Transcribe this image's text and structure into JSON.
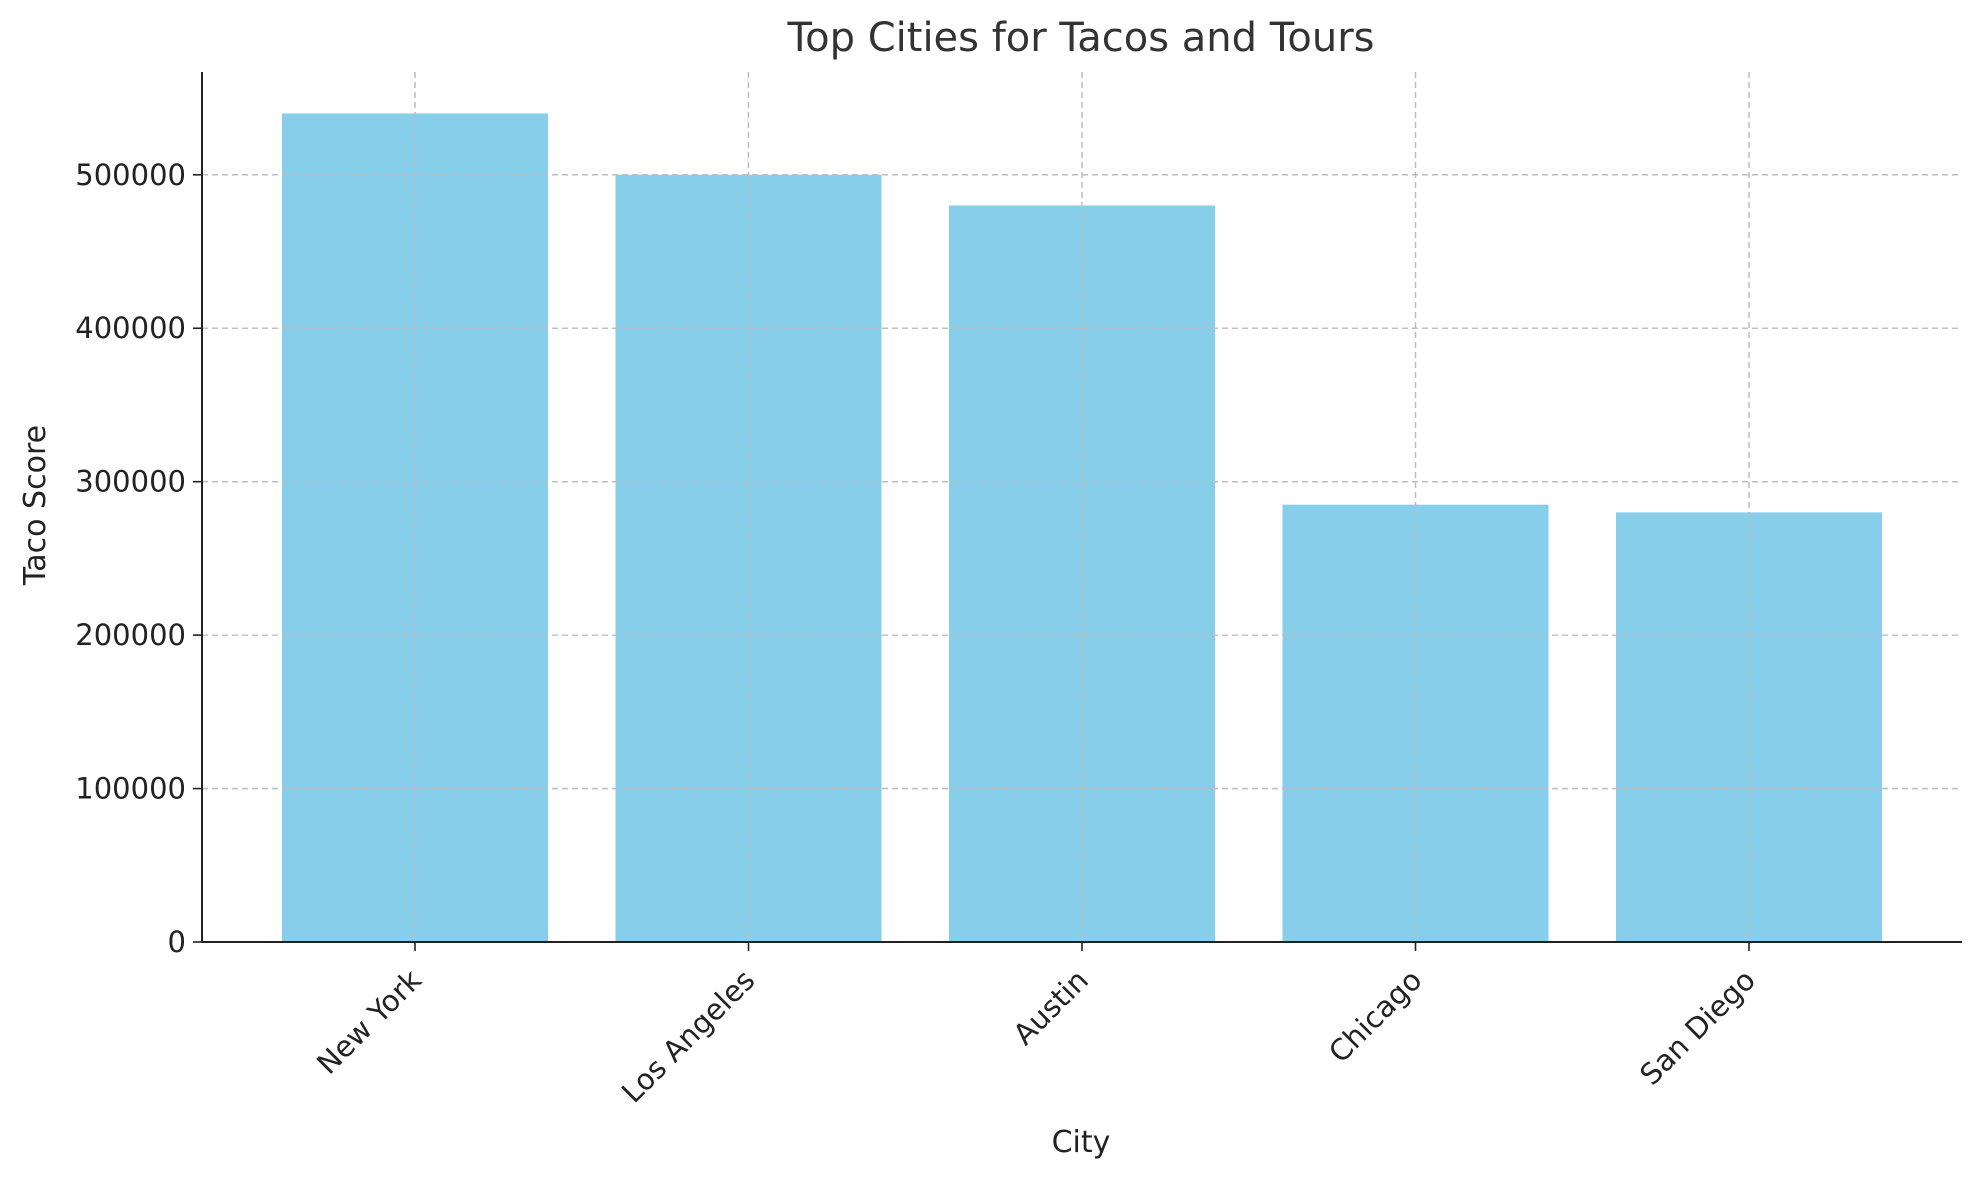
{
  "chart_data": {
    "type": "bar",
    "title": "Top Cities for Tacos and Tours",
    "xlabel": "City",
    "ylabel": "Taco Score",
    "categories": [
      "New York",
      "Los Angeles",
      "Austin",
      "Chicago",
      "San Diego"
    ],
    "values": [
      540000,
      500000,
      480000,
      285000,
      280000
    ],
    "ylim": [
      0,
      567000
    ],
    "yticks": [
      0,
      100000,
      200000,
      300000,
      400000,
      500000
    ],
    "ytick_labels": [
      "0",
      "100000",
      "200000",
      "300000",
      "400000",
      "500000"
    ],
    "grid": true,
    "legend": "none",
    "bar_color": "#87CEEB",
    "text_color": "#333333"
  }
}
